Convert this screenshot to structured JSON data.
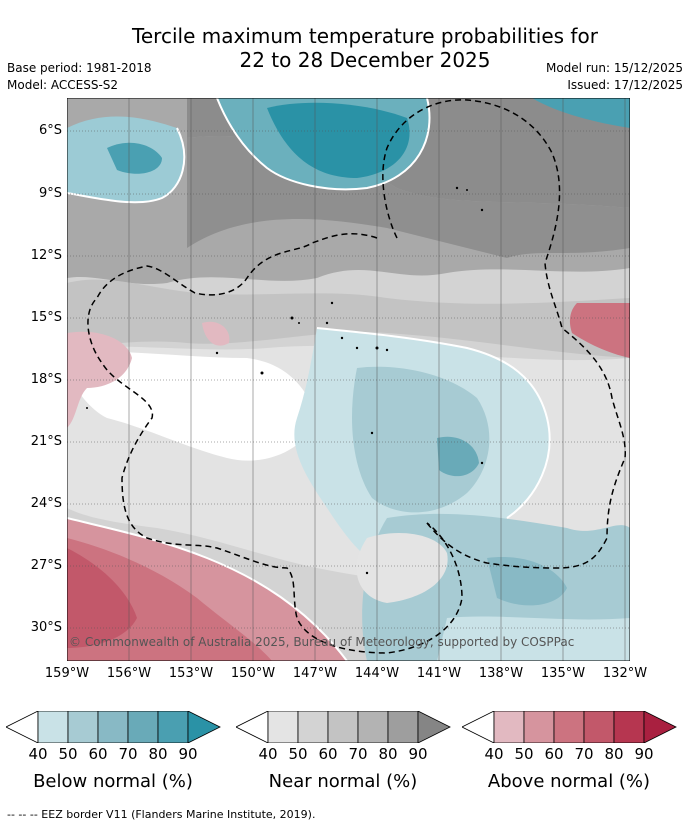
{
  "title_line1": "Tercile maximum temperature probabilities for",
  "title_line2": "22 to 28 December 2025",
  "base_period": "Base period: 1981-2018",
  "model": "Model: ACCESS-S2",
  "model_run": "Model run: 15/12/2025",
  "issued": "Issued: 17/12/2025",
  "copyright": "© Commonwealth of Australia 2025, Bureau of Meteorology, supported by COSPPac",
  "lat_labels": [
    "6°S",
    "9°S",
    "12°S",
    "15°S",
    "18°S",
    "21°S",
    "24°S",
    "27°S",
    "30°S"
  ],
  "lon_labels": [
    "159°W",
    "156°W",
    "153°W",
    "150°W",
    "147°W",
    "144°W",
    "141°W",
    "138°W",
    "135°W",
    "132°W"
  ],
  "legend": {
    "ticks": [
      "40",
      "50",
      "60",
      "70",
      "80",
      "90"
    ],
    "below": {
      "label": "Below normal (%)",
      "colors": [
        "#ffffff",
        "#c9e2e7",
        "#a7cbd3",
        "#88b9c5",
        "#69aab8",
        "#4a9fb1",
        "#2a92a6"
      ]
    },
    "near": {
      "label": "Near normal (%)",
      "colors": [
        "#ffffff",
        "#e4e4e4",
        "#d3d3d3",
        "#c3c3c3",
        "#b3b3b3",
        "#9e9e9e",
        "#858585"
      ]
    },
    "above": {
      "label": "Above normal (%)",
      "colors": [
        "#ffffff",
        "#e2b9c1",
        "#d6949e",
        "#cc7380",
        "#c2586a",
        "#b63650",
        "#a92040"
      ]
    }
  },
  "footer": "--  --  -- EEZ border V11 (Flanders Marine Institute, 2019)."
}
